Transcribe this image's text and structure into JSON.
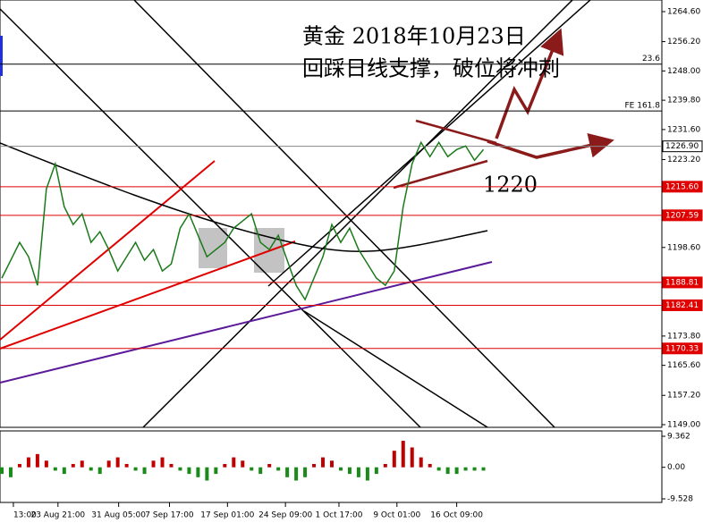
{
  "chart_data": {
    "type": "line",
    "color": "#1a7a1a",
    "annotations": [
      "黄金  2018年10月23日",
      "回踩日线支撑，破位将冲刺",
      "1220"
    ],
    "values": [
      1190,
      1195,
      1200,
      1196,
      1188,
      1215,
      1222,
      1210,
      1205,
      1208,
      1200,
      1203,
      1198,
      1192,
      1196,
      1200,
      1195,
      1198,
      1192,
      1194,
      1204,
      1208,
      1202,
      1196,
      1198,
      1200,
      1204,
      1206,
      1208,
      1200,
      1198,
      1202,
      1195,
      1188,
      1184,
      1190,
      1196,
      1205,
      1200,
      1204,
      1198,
      1194,
      1190,
      1188,
      1192,
      1210,
      1222,
      1228,
      1224,
      1228,
      1224,
      1226,
      1227,
      1223,
      1226
    ],
    "ylim": [
      1149,
      1264.6
    ],
    "yticks": [
      {
        "value": 1264.6,
        "label": "1264.60"
      },
      {
        "value": 1256.2,
        "label": "1256.20"
      },
      {
        "value": 1248,
        "label": "1248.00"
      },
      {
        "value": 1239.8,
        "label": "1239.80"
      },
      {
        "value": 1231.6,
        "label": "1231.60"
      },
      {
        "value": 1223.2,
        "label": "1223.20"
      },
      {
        "value": 1198.6,
        "label": "1198.60"
      },
      {
        "value": 1173.8,
        "label": "1173.80"
      },
      {
        "value": 1165.6,
        "label": "1165.60"
      },
      {
        "value": 1157.2,
        "label": "1157.20"
      },
      {
        "value": 1149,
        "label": "1149.00"
      }
    ],
    "xlim": [
      -0.2,
      74
    ],
    "xticks": [
      {
        "value": 1.3,
        "label": "13:00"
      },
      {
        "value": 6.3,
        "label": "23 Aug 21:00"
      },
      {
        "value": 13.1,
        "label": "31 Aug 05:00"
      },
      {
        "value": 18.8,
        "label": "7 Sep 17:00"
      },
      {
        "value": 25.3,
        "label": "17 Sep 01:00"
      },
      {
        "value": 31.8,
        "label": "24 Sep 09:00"
      },
      {
        "value": 37.8,
        "label": "1 Oct 17:00"
      },
      {
        "value": 44.3,
        "label": "9 Oct 01:00"
      },
      {
        "value": 51,
        "label": "16 Oct 09:00"
      }
    ],
    "levels": [
      {
        "value": 1226.9,
        "label": "1226.90",
        "color": "#888888"
      },
      {
        "value": 1215.6,
        "label": "1215.60",
        "color": "#e00000"
      },
      {
        "value": 1207.59,
        "label": "1207.59",
        "color": "#e00000"
      },
      {
        "value": 1188.81,
        "label": "1188.81",
        "color": "#e00000"
      },
      {
        "value": 1182.41,
        "label": "1182.41",
        "color": "#e00000"
      },
      {
        "value": 1170.33,
        "label": "1170.33",
        "color": "#e00000"
      }
    ],
    "fib_lines": [
      {
        "name": "23.6",
        "value": 1249.9
      },
      {
        "name": "FE 161.8",
        "value": 1236.8
      }
    ],
    "macd": {
      "ylim": [
        -9.528,
        9.362
      ],
      "yticks": [
        {
          "value": 9.362,
          "label": "9.362"
        },
        {
          "value": 0,
          "label": "0.00"
        },
        {
          "value": -9.528,
          "label": "-9.528"
        }
      ],
      "values": [
        -2,
        -3,
        1,
        3,
        4,
        2,
        -1,
        -2,
        1,
        2,
        -1,
        -2,
        2,
        3,
        1,
        -1,
        -2,
        2,
        3,
        1,
        -1,
        -2,
        -3,
        -4,
        -2,
        1,
        3,
        2,
        -1,
        -2,
        1,
        -1,
        -3,
        -4,
        -3,
        1,
        3,
        2,
        -1,
        -2,
        -3,
        -4,
        -2,
        1,
        5,
        8,
        6,
        3,
        1,
        -1,
        -2,
        -2,
        -1,
        -1,
        -1
      ],
      "color_pos": "#c00000",
      "color_neg": "#1a8a1a"
    }
  }
}
